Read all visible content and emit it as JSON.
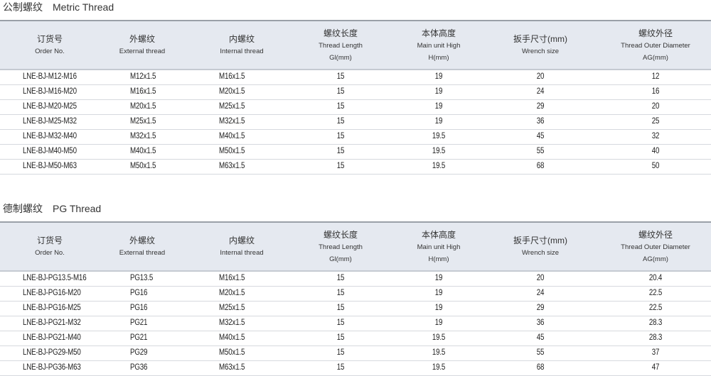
{
  "headers": [
    {
      "zh": "订货号",
      "en": [
        "Order No."
      ]
    },
    {
      "zh": "外螺纹",
      "en": [
        "External thread"
      ]
    },
    {
      "zh": "内螺纹",
      "en": [
        "Internal thread"
      ]
    },
    {
      "zh": "螺纹长度",
      "en": [
        "Thread Length",
        "Gl(mm)"
      ]
    },
    {
      "zh": "本体高度",
      "en": [
        "Main unit High",
        "H(mm)"
      ]
    },
    {
      "zh": "扳手尺寸(mm)",
      "en": [
        "Wrench size"
      ]
    },
    {
      "zh": "螺纹外径",
      "en": [
        "Thread Outer Diameter",
        "AG(mm)"
      ]
    }
  ],
  "tables": [
    {
      "title": "公制螺纹　Metric Thread",
      "rows": [
        [
          "LNE-BJ-M12-M16",
          "M12x1.5",
          "M16x1.5",
          "15",
          "19",
          "20",
          "12"
        ],
        [
          "LNE-BJ-M16-M20",
          "M16x1.5",
          "M20x1.5",
          "15",
          "19",
          "24",
          "16"
        ],
        [
          "LNE-BJ-M20-M25",
          "M20x1.5",
          "M25x1.5",
          "15",
          "19",
          "29",
          "20"
        ],
        [
          "LNE-BJ-M25-M32",
          "M25x1.5",
          "M32x1.5",
          "15",
          "19",
          "36",
          "25"
        ],
        [
          "LNE-BJ-M32-M40",
          "M32x1.5",
          "M40x1.5",
          "15",
          "19.5",
          "45",
          "32"
        ],
        [
          "LNE-BJ-M40-M50",
          "M40x1.5",
          "M50x1.5",
          "15",
          "19.5",
          "55",
          "40"
        ],
        [
          "LNE-BJ-M50-M63",
          "M50x1.5",
          "M63x1.5",
          "15",
          "19.5",
          "68",
          "50"
        ]
      ]
    },
    {
      "title": "德制螺纹　PG Thread",
      "rows": [
        [
          "LNE-BJ-PG13.5-M16",
          "PG13.5",
          "M16x1.5",
          "15",
          "19",
          "20",
          "20.4"
        ],
        [
          "LNE-BJ-PG16-M20",
          "PG16",
          "M20x1.5",
          "15",
          "19",
          "24",
          "22.5"
        ],
        [
          "LNE-BJ-PG16-M25",
          "PG16",
          "M25x1.5",
          "15",
          "19",
          "29",
          "22.5"
        ],
        [
          "LNE-BJ-PG21-M32",
          "PG21",
          "M32x1.5",
          "15",
          "19",
          "36",
          "28.3"
        ],
        [
          "LNE-BJ-PG21-M40",
          "PG21",
          "M40x1.5",
          "15",
          "19.5",
          "45",
          "28.3"
        ],
        [
          "LNE-BJ-PG29-M50",
          "PG29",
          "M50x1.5",
          "15",
          "19.5",
          "55",
          "37"
        ],
        [
          "LNE-BJ-PG36-M63",
          "PG36",
          "M63x1.5",
          "15",
          "19.5",
          "68",
          "47"
        ]
      ]
    }
  ]
}
